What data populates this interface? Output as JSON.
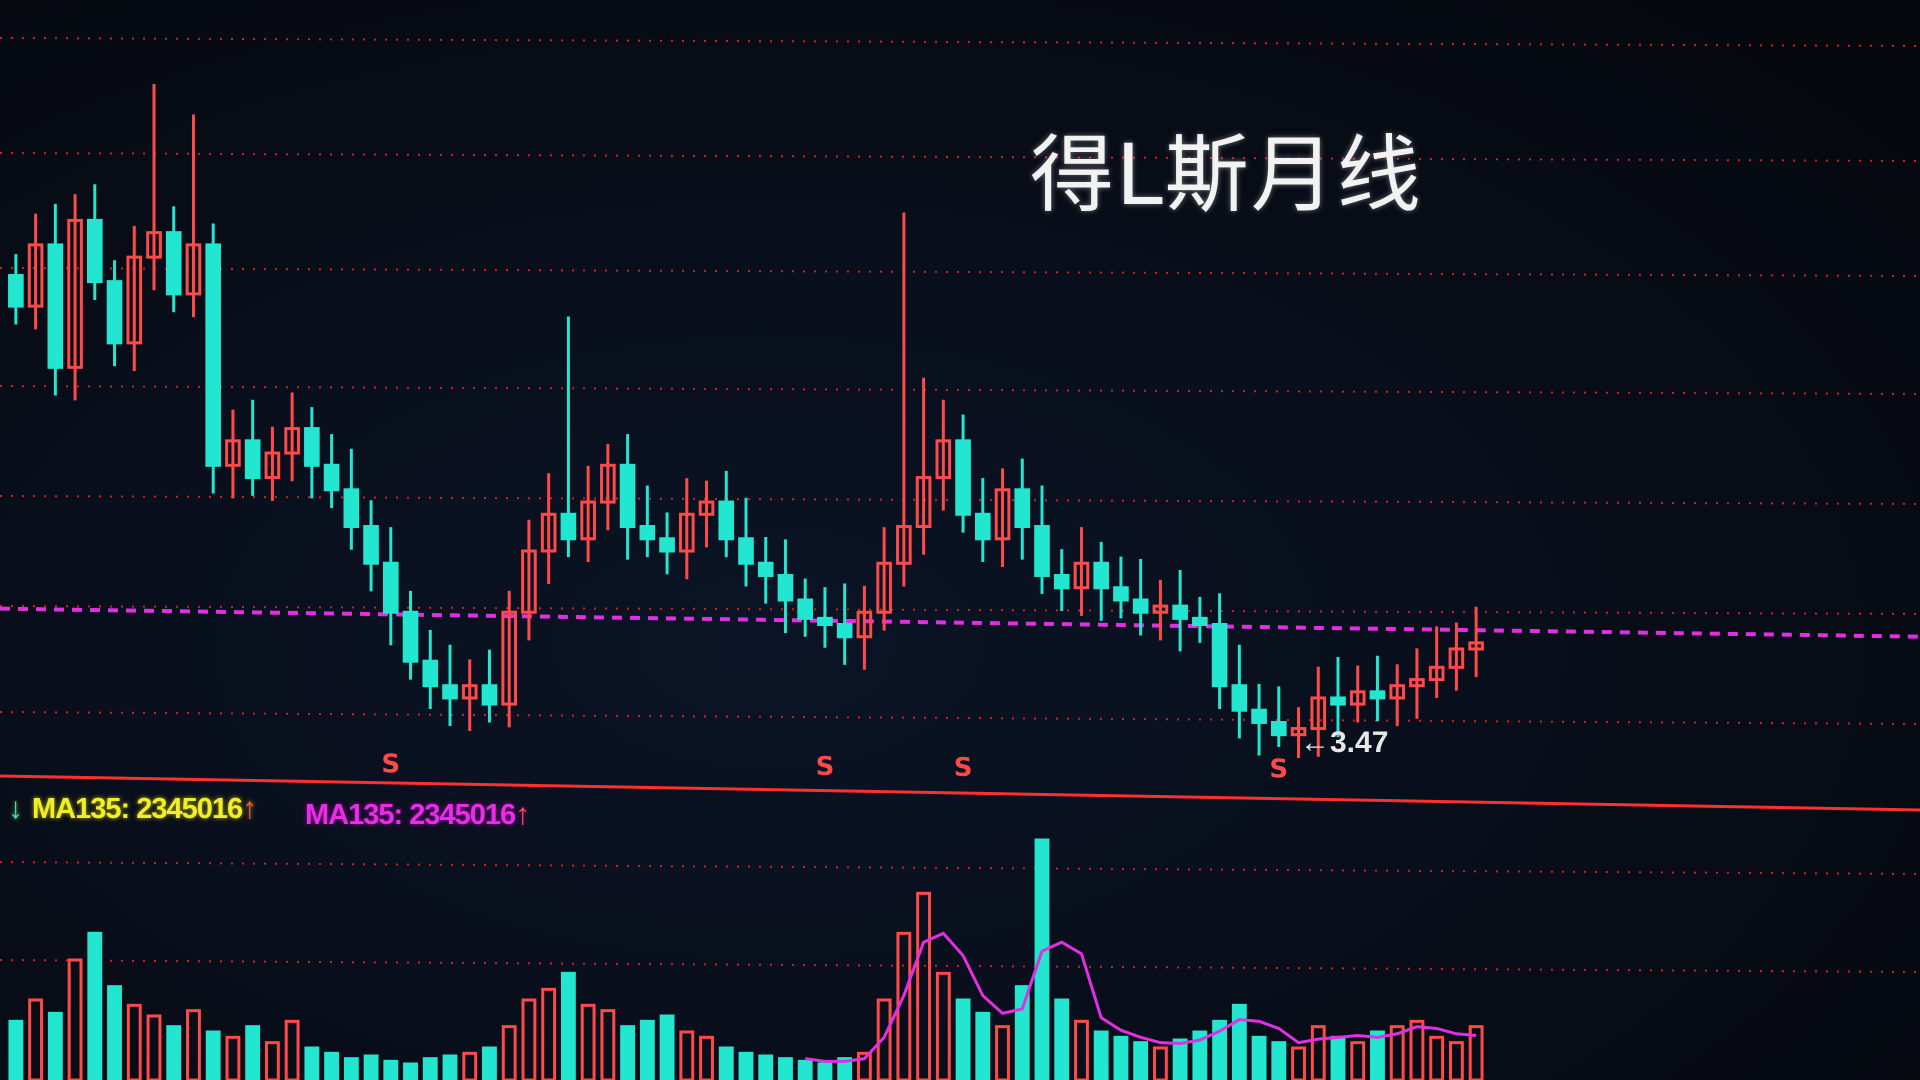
{
  "title": "得L斯月线",
  "indicators": {
    "ma_yellow": {
      "label": "MA135: 2345016",
      "arrow": "↑",
      "color": "#f0ee2a"
    },
    "ma_magenta": {
      "label": "MA135: 2345016",
      "arrow": "↑",
      "color": "#e62ee6"
    },
    "left_arrow": "↓"
  },
  "low_annotation": "←3.47",
  "signal_marker": "S",
  "colors": {
    "up": "#ff4a4a",
    "down": "#22e6d0",
    "grid": "#d02020",
    "support": "#e030e0",
    "background": "#070b14"
  },
  "chart_data": {
    "type": "candlestick",
    "title": "得L斯月线",
    "close": [
      10.67,
      11.67,
      9.67,
      12.07,
      11.07,
      10.07,
      11.47,
      11.87,
      10.87,
      11.67,
      8.07,
      8.47,
      7.87,
      8.27,
      8.67,
      8.07,
      7.67,
      7.07,
      6.47,
      5.67,
      4.87,
      4.47,
      4.27,
      4.47,
      4.17,
      5.67,
      6.67,
      7.27,
      6.87,
      7.47,
      8.07,
      7.07,
      6.87,
      6.67,
      7.27,
      7.47,
      6.87,
      6.47,
      6.27,
      5.87,
      5.57,
      5.47,
      5.27,
      5.67,
      6.47,
      7.07,
      7.87,
      8.47,
      7.27,
      6.87,
      7.67,
      7.07,
      6.27,
      6.07,
      6.47,
      6.07,
      5.87,
      5.67,
      5.77,
      5.57,
      5.47,
      4.47,
      4.07,
      3.87,
      3.67,
      3.77,
      4.27,
      4.17,
      4.37,
      4.27,
      4.47,
      4.57,
      4.77,
      5.07,
      5.17
    ],
    "high_spikes": {
      "7": 14.3,
      "9": 13.8,
      "28": 10.5,
      "45": 12.2,
      "46": 9.5
    },
    "low_value": 3.47,
    "support_line": 5.5,
    "signal_indices": [
      19,
      41,
      48,
      64
    ],
    "volume": [
      22,
      30,
      25,
      45,
      55,
      35,
      28,
      24,
      20,
      26,
      18,
      16,
      20,
      14,
      22,
      12,
      10,
      8,
      9,
      7,
      6,
      8,
      9,
      10,
      12,
      20,
      30,
      34,
      40,
      28,
      26,
      20,
      22,
      24,
      18,
      16,
      12,
      10,
      9,
      8,
      7,
      6,
      8,
      10,
      30,
      55,
      70,
      40,
      30,
      25,
      20,
      35,
      90,
      30,
      22,
      18,
      16,
      14,
      12,
      15,
      18,
      22,
      28,
      16,
      14,
      12,
      20,
      16,
      14,
      18,
      20,
      22,
      16,
      14,
      20
    ],
    "volume_ma": 3,
    "grid": true
  }
}
